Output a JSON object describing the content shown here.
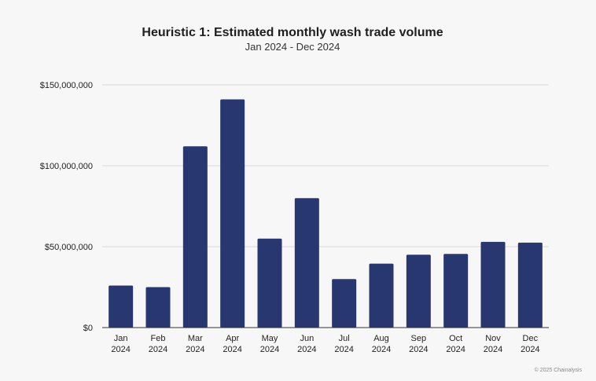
{
  "chart_data": {
    "type": "bar",
    "title": "Heuristic 1: Estimated monthly wash trade volume",
    "subtitle": "Jan 2024 - Dec 2024",
    "categories": [
      [
        "Jan",
        "2024"
      ],
      [
        "Feb",
        "2024"
      ],
      [
        "Mar",
        "2024"
      ],
      [
        "Apr",
        "2024"
      ],
      [
        "May",
        "2024"
      ],
      [
        "Jun",
        "2024"
      ],
      [
        "Jul",
        "2024"
      ],
      [
        "Aug",
        "2024"
      ],
      [
        "Sep",
        "2024"
      ],
      [
        "Oct",
        "2024"
      ],
      [
        "Nov",
        "2024"
      ],
      [
        "Dec",
        "2024"
      ]
    ],
    "values": [
      26000000,
      25000000,
      112000000,
      141000000,
      55000000,
      80000000,
      30000000,
      39500000,
      45000000,
      45500000,
      53000000,
      52500000
    ],
    "ylim": [
      0,
      150000000
    ],
    "yticks": [
      0,
      50000000,
      100000000,
      150000000
    ],
    "ytick_labels": [
      "$0",
      "$50,000,000",
      "$100,000,000",
      "$150,000,000"
    ],
    "grid": true,
    "bar_color": "#283770",
    "grid_color": "#d9d9d9",
    "axis_color": "#333333"
  },
  "footer": {
    "credit": "© 2025 Chainalysis"
  }
}
